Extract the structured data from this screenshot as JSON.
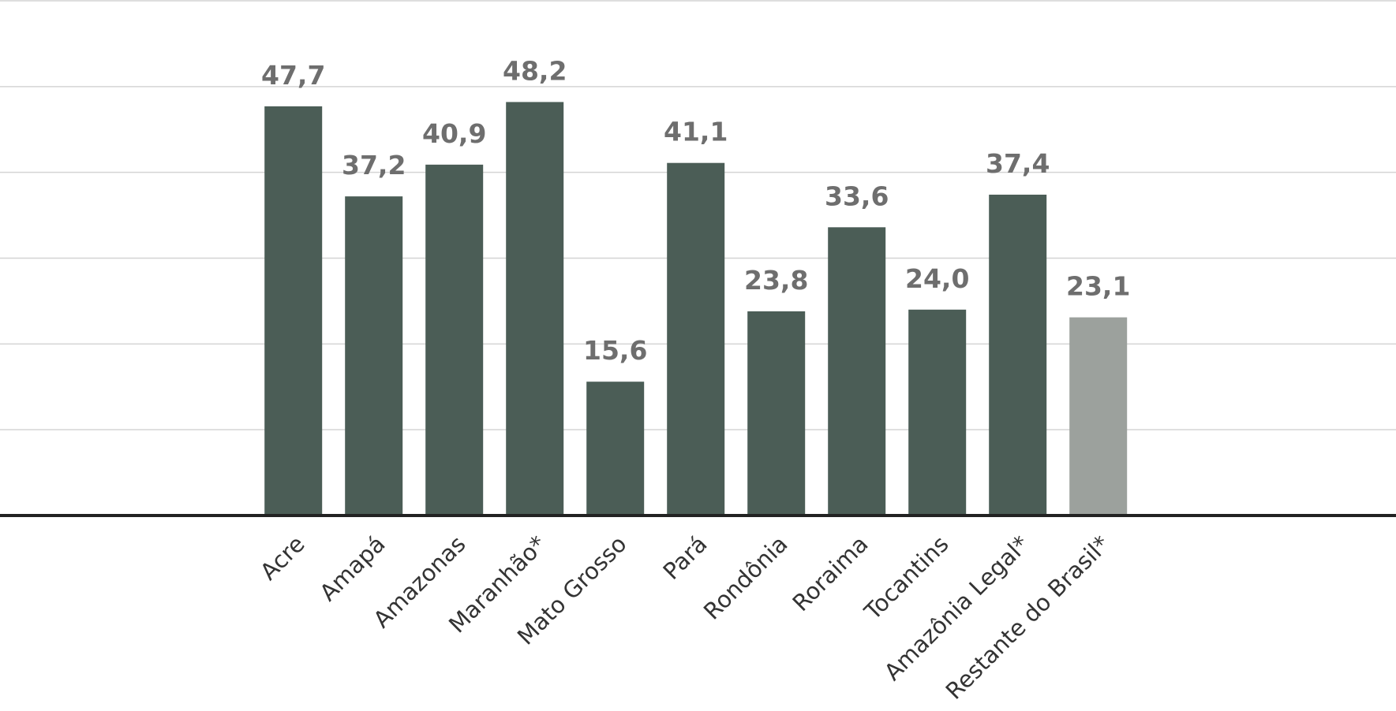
{
  "chart_data": {
    "type": "bar",
    "categories": [
      "Acre",
      "Amapá",
      "Amazonas",
      "Maranhão*",
      "Mato Grosso",
      "Pará",
      "Rondônia",
      "Roraima",
      "Tocantins",
      "Amazônia Legal*",
      "Restante do Brasil*"
    ],
    "values": [
      47.7,
      37.2,
      40.9,
      48.2,
      15.6,
      41.1,
      23.8,
      33.6,
      24.0,
      37.4,
      23.1
    ],
    "value_labels": [
      "47,7",
      "37,2",
      "40,9",
      "48,2",
      "15,6",
      "41,1",
      "23,8",
      "33,6",
      "24,0",
      "37,4",
      "23,1"
    ],
    "colors": [
      "#4b5d56",
      "#4b5d56",
      "#4b5d56",
      "#4b5d56",
      "#4b5d56",
      "#4b5d56",
      "#4b5d56",
      "#4b5d56",
      "#4b5d56",
      "#4b5d56",
      "#9ca19d"
    ],
    "ylim": [
      0,
      60
    ],
    "yticks": [
      0,
      10,
      20,
      30,
      40,
      50,
      60
    ],
    "grid": true
  }
}
